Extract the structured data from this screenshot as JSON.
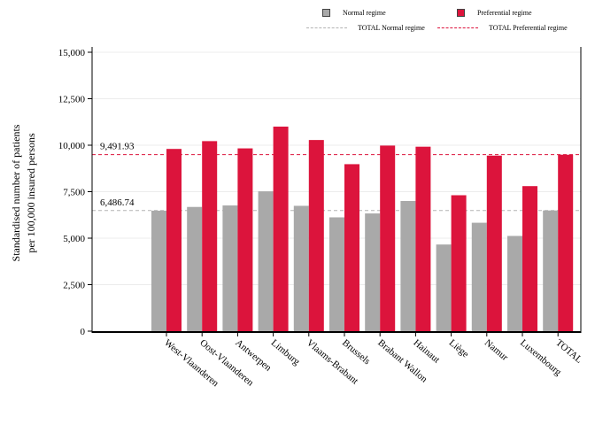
{
  "chart_data": {
    "type": "bar",
    "title": "",
    "xlabel": "",
    "ylabel_line1": "Standardised number of patients",
    "ylabel_line2": "per 100,000 insured persons",
    "ylim": [
      0,
      15000
    ],
    "yticks": [
      0,
      2500,
      5000,
      7500,
      10000,
      12500,
      15000
    ],
    "ytick_labels": [
      "0",
      "2,500",
      "5,000",
      "7,500",
      "10,000",
      "12,500",
      "15,000"
    ],
    "categories": [
      "West-Vlaanderen",
      "Oost-Vlaanderen",
      "Antwerpen",
      "Limburg",
      "Vlaams-Brabant",
      "Brussels",
      "Brabant Wallon",
      "Hainaut",
      "Liège",
      "Namur",
      "Luxembourg",
      "TOTAL"
    ],
    "series": [
      {
        "name": "Normal regime",
        "color": "#a9a9a9",
        "values": [
          6480,
          6680,
          6760,
          7520,
          6740,
          6120,
          6330,
          7000,
          4660,
          5830,
          5120,
          6490
        ]
      },
      {
        "name": "Preferential regime",
        "color": "#dc143c",
        "values": [
          9800,
          10220,
          9830,
          11000,
          10280,
          8980,
          9980,
          9920,
          7310,
          9440,
          7800,
          9490
        ]
      }
    ],
    "reference_lines": [
      {
        "name": "TOTAL Normal regime",
        "value": 6486.74,
        "label": "6,486.74",
        "color": "#b3b3b3"
      },
      {
        "name": "TOTAL Preferential regime",
        "value": 9491.93,
        "label": "9,491.93",
        "color": "#dc143c"
      }
    ],
    "grid": true,
    "legend_position": "top-right"
  }
}
